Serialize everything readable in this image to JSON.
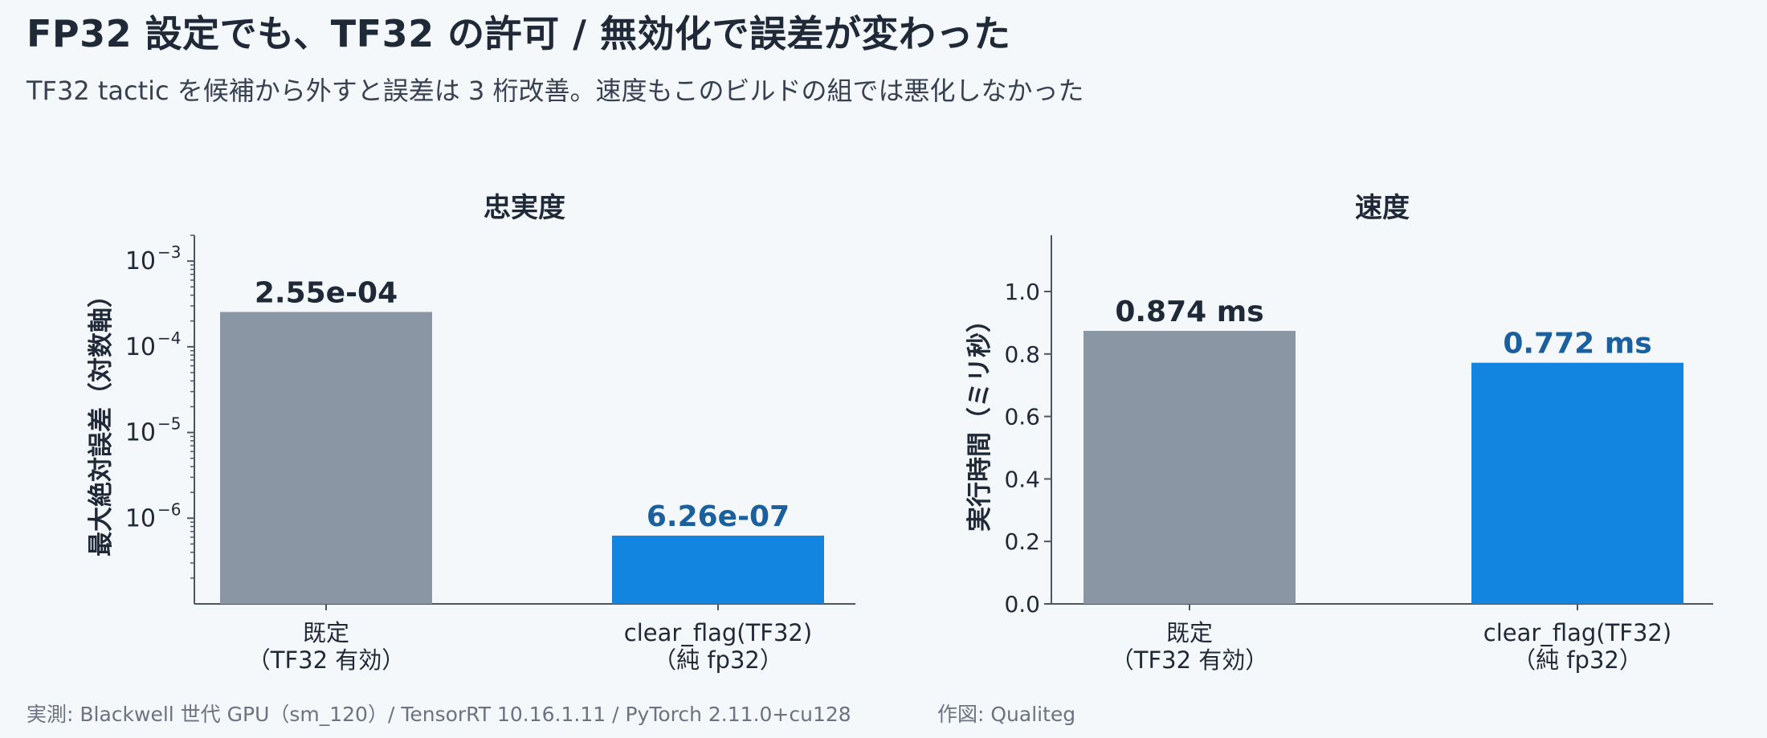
{
  "title": "FP32 設定でも、TF32 の許可 / 無効化で誤差が変わった",
  "subtitle": "TF32 tactic を候補から外すと誤差は 3 桁改善。速度もこのビルドの組では悪化しなかった",
  "footer": {
    "source": "実測: Blackwell 世代 GPU（sm_120）/ TensorRT 10.16.1.11 / PyTorch 2.11.0+cu128",
    "credit": "作図: Qualiteg"
  },
  "colors": {
    "default_bar": "#8a96a3",
    "highlight_bar": "#1185e0",
    "highlight_label": "#1a5f9e",
    "default_label": "#1f2937",
    "axis": "#4b5563"
  },
  "chart_data": [
    {
      "type": "bar",
      "title": "忠実度",
      "ylabel": "最大絶対誤差（対数軸）",
      "yscale": "log",
      "ylim": [
        1e-07,
        0.002
      ],
      "yticks": [
        {
          "value": 0.001,
          "base": "10",
          "exp": "−3"
        },
        {
          "value": 0.0001,
          "base": "10",
          "exp": "−4"
        },
        {
          "value": 1e-05,
          "base": "10",
          "exp": "−5"
        },
        {
          "value": 1e-06,
          "base": "10",
          "exp": "−6"
        }
      ],
      "categories": [
        {
          "line1": "既定",
          "line2": "（TF32 有効）"
        },
        {
          "line1": "clear_flag(TF32)",
          "line2": "（純 fp32）"
        }
      ],
      "values": [
        0.000255,
        6.26e-07
      ],
      "value_labels": [
        "2.55e-04",
        "6.26e-07"
      ]
    },
    {
      "type": "bar",
      "title": "速度",
      "ylabel": "実行時間（ミリ秒）",
      "yscale": "linear",
      "ylim": [
        0,
        1.18
      ],
      "yticks": [
        {
          "value": 0.0,
          "label": "0.0"
        },
        {
          "value": 0.2,
          "label": "0.2"
        },
        {
          "value": 0.4,
          "label": "0.4"
        },
        {
          "value": 0.6,
          "label": "0.6"
        },
        {
          "value": 0.8,
          "label": "0.8"
        },
        {
          "value": 1.0,
          "label": "1.0"
        }
      ],
      "categories": [
        {
          "line1": "既定",
          "line2": "（TF32 有効）"
        },
        {
          "line1": "clear_flag(TF32)",
          "line2": "（純 fp32）"
        }
      ],
      "values": [
        0.874,
        0.772
      ],
      "value_labels": [
        "0.874 ms",
        "0.772 ms"
      ]
    }
  ]
}
